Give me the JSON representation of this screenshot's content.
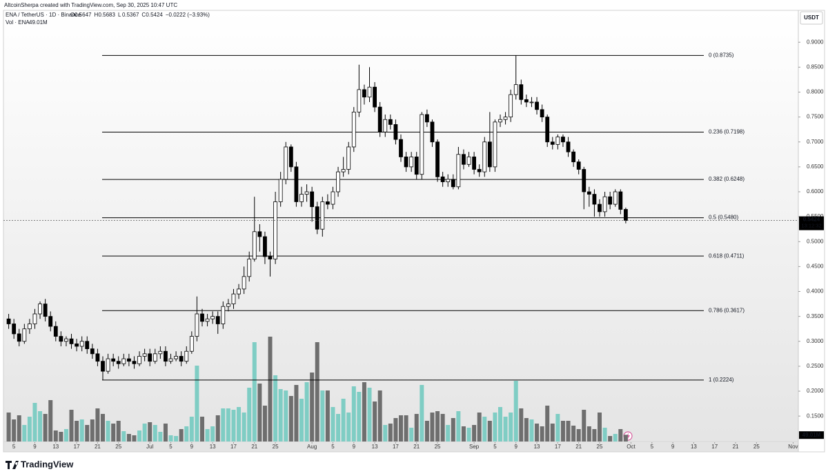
{
  "header": {
    "credit": "AltcoinSherpa created with TradingView.com, Sep 30, 2025 10:47 UTC",
    "brand": "TradingView"
  },
  "chart_data": {
    "type": "candlestick",
    "symbol": "ENA / TetherUS · 1D · Binance",
    "ohlc_legend": [
      {
        "key": "O",
        "text": "0.5647"
      },
      {
        "key": "H",
        "text": "0.5683"
      },
      {
        "key": "L",
        "text": "0.5367"
      },
      {
        "key": "C",
        "text": "0.5424"
      }
    ],
    "change": "−0.0222 (−3.93%)",
    "volume_legend": {
      "name": "Vol · ENA",
      "text": "49.01M"
    },
    "y_axis_label": "USDT",
    "countdown": "13:12:32",
    "up_color": "#ffffff",
    "down_color": "#000000",
    "vol_up_color": "#7fcdc4",
    "vol_down_color": "#6e6e6e",
    "x": [
      "2025-06-04",
      "2025-06-05",
      "2025-06-06",
      "2025-06-07",
      "2025-06-08",
      "2025-06-09",
      "2025-06-10",
      "2025-06-11",
      "2025-06-12",
      "2025-06-13",
      "2025-06-14",
      "2025-06-15",
      "2025-06-16",
      "2025-06-17",
      "2025-06-18",
      "2025-06-19",
      "2025-06-20",
      "2025-06-21",
      "2025-06-22",
      "2025-06-23",
      "2025-06-24",
      "2025-06-25",
      "2025-06-26",
      "2025-06-27",
      "2025-06-28",
      "2025-06-29",
      "2025-06-30",
      "2025-07-01",
      "2025-07-02",
      "2025-07-03",
      "2025-07-04",
      "2025-07-05",
      "2025-07-06",
      "2025-07-07",
      "2025-07-08",
      "2025-07-09",
      "2025-07-10",
      "2025-07-11",
      "2025-07-12",
      "2025-07-13",
      "2025-07-14",
      "2025-07-15",
      "2025-07-16",
      "2025-07-17",
      "2025-07-18",
      "2025-07-19",
      "2025-07-20",
      "2025-07-21",
      "2025-07-22",
      "2025-07-23",
      "2025-07-24",
      "2025-07-25",
      "2025-07-26",
      "2025-07-27",
      "2025-07-28",
      "2025-07-29",
      "2025-07-30",
      "2025-07-31",
      "2025-08-01",
      "2025-08-02",
      "2025-08-03",
      "2025-08-04",
      "2025-08-05",
      "2025-08-06",
      "2025-08-07",
      "2025-08-08",
      "2025-08-09",
      "2025-08-10",
      "2025-08-11",
      "2025-08-12",
      "2025-08-13",
      "2025-08-14",
      "2025-08-15",
      "2025-08-16",
      "2025-08-17",
      "2025-08-18",
      "2025-08-19",
      "2025-08-20",
      "2025-08-21",
      "2025-08-22",
      "2025-08-23",
      "2025-08-24",
      "2025-08-25",
      "2025-08-26",
      "2025-08-27",
      "2025-08-28",
      "2025-08-29",
      "2025-08-30",
      "2025-08-31",
      "2025-09-01",
      "2025-09-02",
      "2025-09-03",
      "2025-09-04",
      "2025-09-05",
      "2025-09-06",
      "2025-09-07",
      "2025-09-08",
      "2025-09-09",
      "2025-09-10",
      "2025-09-11",
      "2025-09-12",
      "2025-09-13",
      "2025-09-14",
      "2025-09-15",
      "2025-09-16",
      "2025-09-17",
      "2025-09-18",
      "2025-09-19",
      "2025-09-20",
      "2025-09-21",
      "2025-09-22",
      "2025-09-23",
      "2025-09-24",
      "2025-09-25",
      "2025-09-26",
      "2025-09-27",
      "2025-09-28",
      "2025-09-29",
      "2025-09-30"
    ],
    "open": [
      0.345,
      0.335,
      0.315,
      0.3,
      0.325,
      0.335,
      0.355,
      0.375,
      0.35,
      0.33,
      0.31,
      0.3,
      0.305,
      0.295,
      0.29,
      0.3,
      0.285,
      0.275,
      0.26,
      0.24,
      0.265,
      0.26,
      0.255,
      0.265,
      0.26,
      0.255,
      0.27,
      0.275,
      0.26,
      0.275,
      0.28,
      0.26,
      0.265,
      0.27,
      0.26,
      0.28,
      0.31,
      0.355,
      0.34,
      0.345,
      0.35,
      0.335,
      0.37,
      0.375,
      0.395,
      0.405,
      0.43,
      0.465,
      0.52,
      0.51,
      0.47,
      0.465,
      0.58,
      0.625,
      0.69,
      0.65,
      0.58,
      0.595,
      0.6,
      0.57,
      0.525,
      0.58,
      0.575,
      0.6,
      0.64,
      0.645,
      0.69,
      0.76,
      0.805,
      0.79,
      0.81,
      0.77,
      0.72,
      0.745,
      0.735,
      0.705,
      0.67,
      0.65,
      0.67,
      0.635,
      0.755,
      0.74,
      0.7,
      0.63,
      0.62,
      0.625,
      0.61,
      0.675,
      0.655,
      0.67,
      0.645,
      0.64,
      0.7,
      0.65,
      0.74,
      0.745,
      0.75,
      0.795,
      0.815,
      0.785,
      0.78,
      0.78,
      0.765,
      0.75,
      0.7,
      0.695,
      0.71,
      0.7,
      0.68,
      0.66,
      0.645,
      0.6,
      0.595,
      0.575,
      0.56,
      0.59,
      0.575,
      0.6,
      0.5647
    ],
    "high": [
      0.355,
      0.345,
      0.325,
      0.335,
      0.345,
      0.365,
      0.38,
      0.385,
      0.36,
      0.34,
      0.32,
      0.31,
      0.315,
      0.305,
      0.31,
      0.31,
      0.295,
      0.285,
      0.27,
      0.275,
      0.275,
      0.27,
      0.275,
      0.275,
      0.27,
      0.28,
      0.285,
      0.285,
      0.285,
      0.29,
      0.29,
      0.275,
      0.28,
      0.28,
      0.29,
      0.32,
      0.39,
      0.365,
      0.355,
      0.36,
      0.36,
      0.38,
      0.385,
      0.405,
      0.415,
      0.45,
      0.48,
      0.59,
      0.535,
      0.52,
      0.48,
      0.6,
      0.64,
      0.7,
      0.695,
      0.66,
      0.61,
      0.615,
      0.61,
      0.58,
      0.59,
      0.595,
      0.61,
      0.65,
      0.67,
      0.7,
      0.77,
      0.855,
      0.815,
      0.85,
      0.82,
      0.78,
      0.755,
      0.755,
      0.745,
      0.715,
      0.68,
      0.68,
      0.68,
      0.76,
      0.765,
      0.745,
      0.705,
      0.64,
      0.635,
      0.635,
      0.69,
      0.685,
      0.68,
      0.68,
      0.655,
      0.71,
      0.76,
      0.745,
      0.755,
      0.76,
      0.805,
      0.8735,
      0.825,
      0.795,
      0.79,
      0.79,
      0.775,
      0.755,
      0.71,
      0.715,
      0.715,
      0.71,
      0.685,
      0.665,
      0.65,
      0.61,
      0.605,
      0.585,
      0.6,
      0.6,
      0.605,
      0.605,
      0.5683
    ],
    "low": [
      0.325,
      0.305,
      0.29,
      0.295,
      0.315,
      0.325,
      0.345,
      0.34,
      0.32,
      0.3,
      0.29,
      0.29,
      0.285,
      0.28,
      0.28,
      0.275,
      0.265,
      0.25,
      0.2224,
      0.235,
      0.25,
      0.245,
      0.25,
      0.25,
      0.245,
      0.25,
      0.26,
      0.25,
      0.255,
      0.265,
      0.25,
      0.255,
      0.26,
      0.25,
      0.255,
      0.275,
      0.3,
      0.33,
      0.33,
      0.335,
      0.315,
      0.325,
      0.36,
      0.365,
      0.385,
      0.395,
      0.42,
      0.46,
      0.48,
      0.455,
      0.43,
      0.455,
      0.57,
      0.615,
      0.64,
      0.57,
      0.57,
      0.58,
      0.54,
      0.515,
      0.51,
      0.565,
      0.565,
      0.59,
      0.63,
      0.635,
      0.68,
      0.75,
      0.775,
      0.78,
      0.76,
      0.71,
      0.71,
      0.725,
      0.695,
      0.66,
      0.64,
      0.64,
      0.625,
      0.625,
      0.73,
      0.69,
      0.62,
      0.61,
      0.61,
      0.605,
      0.605,
      0.645,
      0.65,
      0.635,
      0.63,
      0.63,
      0.64,
      0.64,
      0.73,
      0.735,
      0.74,
      0.785,
      0.775,
      0.77,
      0.77,
      0.755,
      0.74,
      0.69,
      0.685,
      0.685,
      0.69,
      0.67,
      0.65,
      0.635,
      0.565,
      0.57,
      0.55,
      0.55,
      0.55,
      0.565,
      0.57,
      0.555,
      0.5367
    ],
    "close": [
      0.335,
      0.315,
      0.3,
      0.325,
      0.335,
      0.355,
      0.375,
      0.35,
      0.33,
      0.31,
      0.3,
      0.305,
      0.295,
      0.29,
      0.3,
      0.285,
      0.275,
      0.26,
      0.24,
      0.265,
      0.26,
      0.255,
      0.265,
      0.26,
      0.255,
      0.27,
      0.275,
      0.26,
      0.275,
      0.28,
      0.26,
      0.265,
      0.27,
      0.26,
      0.28,
      0.31,
      0.355,
      0.34,
      0.345,
      0.35,
      0.335,
      0.37,
      0.375,
      0.395,
      0.405,
      0.43,
      0.465,
      0.52,
      0.51,
      0.47,
      0.465,
      0.58,
      0.625,
      0.69,
      0.65,
      0.58,
      0.595,
      0.6,
      0.57,
      0.525,
      0.58,
      0.575,
      0.6,
      0.64,
      0.645,
      0.69,
      0.76,
      0.805,
      0.79,
      0.81,
      0.77,
      0.72,
      0.745,
      0.735,
      0.705,
      0.67,
      0.65,
      0.67,
      0.635,
      0.755,
      0.74,
      0.7,
      0.63,
      0.62,
      0.625,
      0.61,
      0.675,
      0.655,
      0.67,
      0.645,
      0.64,
      0.7,
      0.65,
      0.74,
      0.745,
      0.75,
      0.795,
      0.815,
      0.785,
      0.78,
      0.78,
      0.765,
      0.75,
      0.7,
      0.695,
      0.71,
      0.7,
      0.68,
      0.66,
      0.645,
      0.6,
      0.595,
      0.575,
      0.56,
      0.59,
      0.575,
      0.6,
      0.5647,
      0.5424
    ],
    "volume": [
      210,
      160,
      190,
      120,
      180,
      280,
      220,
      200,
      300,
      80,
      70,
      90,
      230,
      150,
      160,
      120,
      160,
      240,
      200,
      150,
      130,
      150,
      75,
      55,
      45,
      80,
      130,
      140,
      120,
      70,
      130,
      45,
      40,
      90,
      110,
      180,
      550,
      180,
      90,
      110,
      190,
      240,
      240,
      230,
      250,
      210,
      390,
      720,
      420,
      260,
      760,
      480,
      380,
      370,
      330,
      410,
      310,
      430,
      500,
      720,
      370,
      370,
      250,
      200,
      310,
      210,
      400,
      360,
      430,
      390,
      290,
      370,
      120,
      130,
      170,
      190,
      190,
      100,
      200,
      410,
      150,
      210,
      220,
      200,
      120,
      170,
      220,
      110,
      100,
      120,
      210,
      180,
      150,
      210,
      250,
      180,
      210,
      440,
      240,
      170,
      160,
      130,
      110,
      260,
      130,
      200,
      150,
      150,
      115,
      90,
      230,
      110,
      90,
      210,
      100,
      40,
      55,
      90,
      49.01
    ],
    "vlim": [
      0,
      1000
    ],
    "ylim": [
      0.099,
      0.964
    ],
    "yticks": [
      {
        "value": 0.15,
        "label": "0.1500"
      },
      {
        "value": 0.2,
        "label": "0.2000"
      },
      {
        "value": 0.25,
        "label": "0.2500"
      },
      {
        "value": 0.3,
        "label": "0.3000"
      },
      {
        "value": 0.35,
        "label": "0.3500"
      },
      {
        "value": 0.4,
        "label": "0.4000"
      },
      {
        "value": 0.45,
        "label": "0.4500"
      },
      {
        "value": 0.5,
        "label": "0.5000"
      },
      {
        "value": 0.55,
        "label": "0.5500"
      },
      {
        "value": 0.6,
        "label": "0.6000"
      },
      {
        "value": 0.65,
        "label": "0.6500"
      },
      {
        "value": 0.7,
        "label": "0.7000"
      },
      {
        "value": 0.75,
        "label": "0.7500"
      },
      {
        "value": 0.8,
        "label": "0.8000"
      },
      {
        "value": 0.85,
        "label": "0.8500"
      },
      {
        "value": 0.9,
        "label": "0.9000"
      }
    ],
    "xlim": [
      "2025-06-03",
      "2025-11-02"
    ],
    "xticks": [
      {
        "value": "2025-06-05",
        "label": "5"
      },
      {
        "value": "2025-06-09",
        "label": "9"
      },
      {
        "value": "2025-06-13",
        "label": "13"
      },
      {
        "value": "2025-06-17",
        "label": "17"
      },
      {
        "value": "2025-06-21",
        "label": "21"
      },
      {
        "value": "2025-06-25",
        "label": "25"
      },
      {
        "value": "2025-07-01",
        "label": "Jul"
      },
      {
        "value": "2025-07-05",
        "label": "5"
      },
      {
        "value": "2025-07-09",
        "label": "9"
      },
      {
        "value": "2025-07-13",
        "label": "13"
      },
      {
        "value": "2025-07-17",
        "label": "17"
      },
      {
        "value": "2025-07-21",
        "label": "21"
      },
      {
        "value": "2025-07-25",
        "label": "25"
      },
      {
        "value": "2025-08-01",
        "label": "Aug"
      },
      {
        "value": "2025-08-05",
        "label": "5"
      },
      {
        "value": "2025-08-09",
        "label": "9"
      },
      {
        "value": "2025-08-13",
        "label": "13"
      },
      {
        "value": "2025-08-17",
        "label": "17"
      },
      {
        "value": "2025-08-21",
        "label": "21"
      },
      {
        "value": "2025-08-25",
        "label": "25"
      },
      {
        "value": "2025-09-01",
        "label": "Sep"
      },
      {
        "value": "2025-09-05",
        "label": "5"
      },
      {
        "value": "2025-09-09",
        "label": "9"
      },
      {
        "value": "2025-09-13",
        "label": "13"
      },
      {
        "value": "2025-09-17",
        "label": "17"
      },
      {
        "value": "2025-09-21",
        "label": "21"
      },
      {
        "value": "2025-09-25",
        "label": "25"
      },
      {
        "value": "2025-10-01",
        "label": "Oct"
      },
      {
        "value": "2025-10-05",
        "label": "5"
      },
      {
        "value": "2025-10-09",
        "label": "9"
      },
      {
        "value": "2025-10-13",
        "label": "13"
      },
      {
        "value": "2025-10-17",
        "label": "17"
      },
      {
        "value": "2025-10-21",
        "label": "21"
      },
      {
        "value": "2025-10-25",
        "label": "25"
      },
      {
        "value": "2025-11-01",
        "label": "Nov"
      }
    ],
    "fib_levels": [
      {
        "label": "0 (0.8735)",
        "value": 0.8735
      },
      {
        "label": "0.236 (0.7198)",
        "value": 0.7198
      },
      {
        "label": "0.382 (0.6248)",
        "value": 0.6248
      },
      {
        "label": "0.5 (0.5480)",
        "value": 0.548
      },
      {
        "label": "0.618 (0.4711)",
        "value": 0.4711
      },
      {
        "label": "0.786 (0.3617)",
        "value": 0.3617
      },
      {
        "label": "1 (0.2224)",
        "value": 0.2224
      }
    ]
  }
}
